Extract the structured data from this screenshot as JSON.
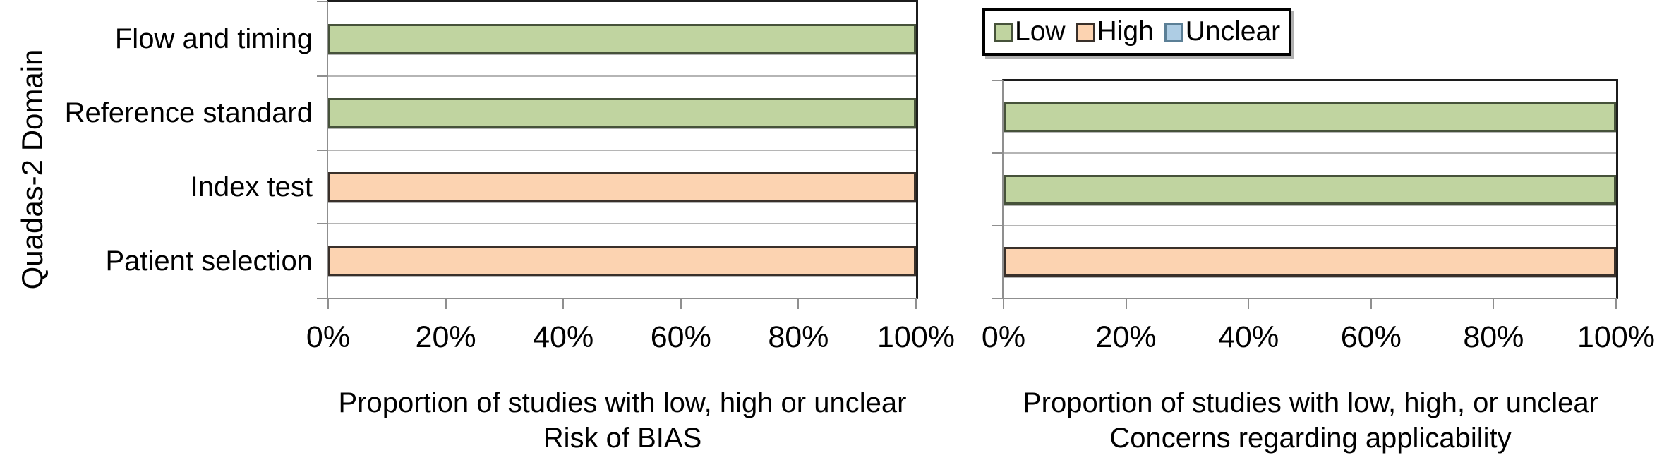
{
  "figure": {
    "y_axis_title": "Quadas-2 Domain"
  },
  "legend": {
    "items": [
      {
        "label": "Low",
        "fill": "#c0d4a0",
        "border": "#46523a"
      },
      {
        "label": "High",
        "fill": "#fcd3b1",
        "border": "#39302a"
      },
      {
        "label": "Unclear",
        "fill": "#aecde4",
        "border": "#5b7f96"
      }
    ]
  },
  "chart_data": [
    {
      "type": "bar",
      "orientation": "horizontal",
      "categories": [
        "Flow and timing",
        "Reference standard",
        "Index test",
        "Patient selection"
      ],
      "series": [
        {
          "name": "Low",
          "values": [
            100,
            100,
            0,
            0
          ]
        },
        {
          "name": "High",
          "values": [
            0,
            0,
            100,
            100
          ]
        },
        {
          "name": "Unclear",
          "values": [
            0,
            0,
            0,
            0
          ]
        }
      ],
      "x_ticks": [
        "0%",
        "20%",
        "40%",
        "60%",
        "80%",
        "100%"
      ],
      "xlim": [
        0,
        100
      ],
      "xlabel_lines": [
        "Proportion of studies with low, high or unclear",
        "Risk of BIAS"
      ],
      "ylabel": "Quadas-2 Domain",
      "legend_entries": [
        "Low",
        "High",
        "Unclear"
      ],
      "legend_position": "top-right-outside",
      "grid": "category-boundary-lines-only"
    },
    {
      "type": "bar",
      "orientation": "horizontal",
      "categories": [
        "Reference standard",
        "Index test",
        "Patient selection"
      ],
      "series": [
        {
          "name": "Low",
          "values": [
            100,
            100,
            0
          ]
        },
        {
          "name": "High",
          "values": [
            0,
            0,
            100
          ]
        },
        {
          "name": "Unclear",
          "values": [
            0,
            0,
            0
          ]
        }
      ],
      "x_ticks": [
        "0%",
        "20%",
        "40%",
        "60%",
        "80%",
        "100%"
      ],
      "xlim": [
        0,
        100
      ],
      "xlabel_lines": [
        "Proportion of studies with low, high, or unclear",
        "Concerns regarding applicability"
      ],
      "grid": "category-boundary-lines-only"
    }
  ]
}
